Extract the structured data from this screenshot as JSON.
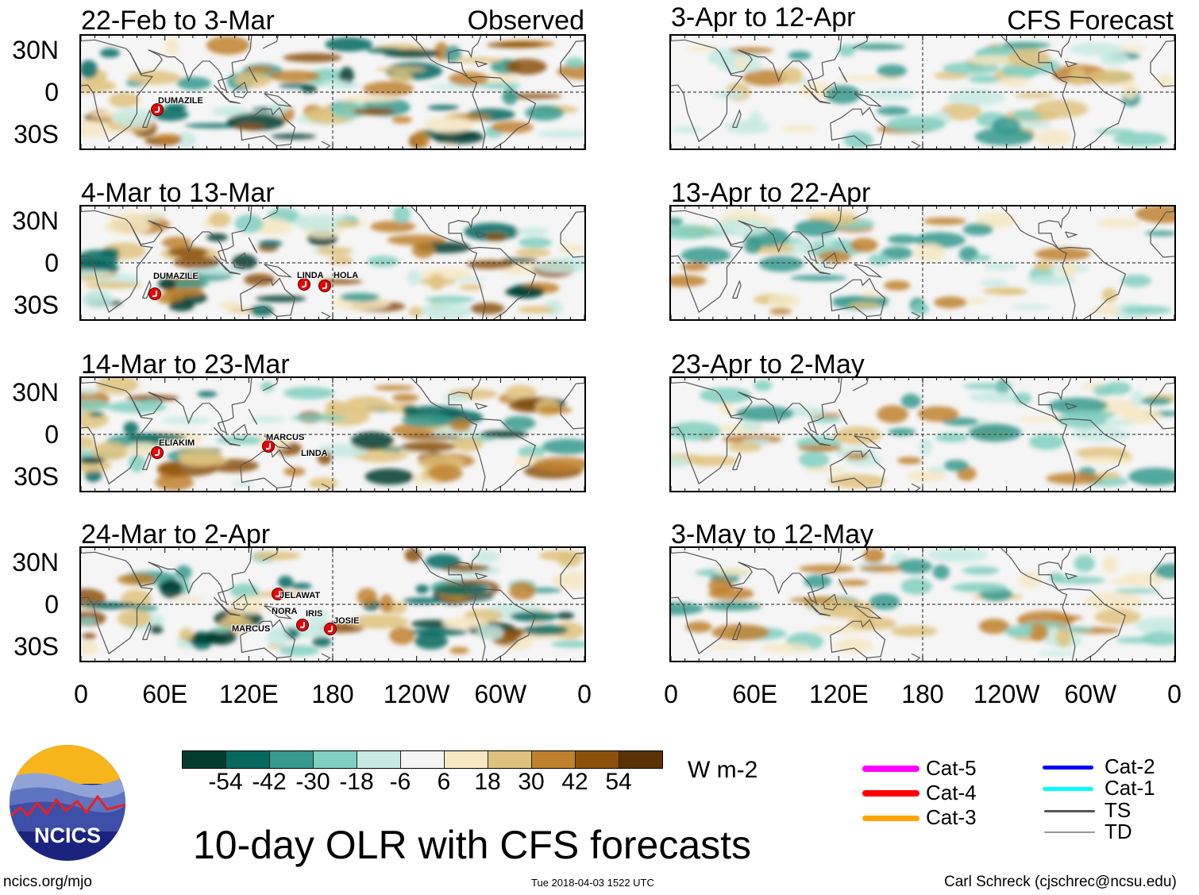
{
  "figure": {
    "title": "10-day OLR with CFS forecasts",
    "observed_label": "Observed",
    "forecast_label": "CFS Forecast"
  },
  "observed_panels": [
    {
      "period": "22-Feb to 3-Mar",
      "storms": [
        "DUMAZILE"
      ]
    },
    {
      "period": "4-Mar to 13-Mar",
      "storms": [
        "DUMAZILE",
        "LINDA",
        "HOLA"
      ]
    },
    {
      "period": "14-Mar to 23-Mar",
      "storms": [
        "ELIAKIM",
        "MARCUS",
        "LINDA"
      ]
    },
    {
      "period": "24-Mar to 2-Apr",
      "storms": [
        "JELAWAT",
        "NORA",
        "IRIS",
        "JOSIE",
        "MARCUS"
      ]
    }
  ],
  "forecast_panels": [
    {
      "period": "3-Apr to 12-Apr"
    },
    {
      "period": "13-Apr to 22-Apr"
    },
    {
      "period": "23-Apr to 2-May"
    },
    {
      "period": "3-May to 12-May"
    }
  ],
  "lat_labels": [
    "30N",
    "0",
    "30S"
  ],
  "lon_labels": [
    "0",
    "60E",
    "120E",
    "180",
    "120W",
    "60W",
    "0"
  ],
  "colorbar": {
    "unit": "W m-2",
    "labels": [
      "-54",
      "-42",
      "-30",
      "-18",
      "-6",
      "6",
      "18",
      "30",
      "42",
      "54"
    ],
    "colors": [
      "#023c30",
      "#05695f",
      "#369a8e",
      "#80cfc0",
      "#c7eae3",
      "#f5f5f5",
      "#f6e8c3",
      "#dfc27d",
      "#bf812d",
      "#8c510a",
      "#5a3206"
    ]
  },
  "storm_legend": [
    {
      "label": "Cat-5",
      "color": "#ff00ff"
    },
    {
      "label": "Cat-4",
      "color": "#ff0000"
    },
    {
      "label": "Cat-3",
      "color": "#ffa500"
    },
    {
      "label": "Cat-2",
      "color": "#0000ff"
    },
    {
      "label": "Cat-1",
      "color": "#00ffff"
    },
    {
      "label": "TS",
      "color": "#555555"
    },
    {
      "label": "TD",
      "color": "#999999"
    }
  ],
  "logo": {
    "text": "NCICS"
  },
  "footer": {
    "url": "ncics.org/mjo",
    "timestamp": "Tue 2018-04-03 1522 UTC",
    "credit": "Carl Schreck (cjschrec@ncsu.edu)"
  }
}
